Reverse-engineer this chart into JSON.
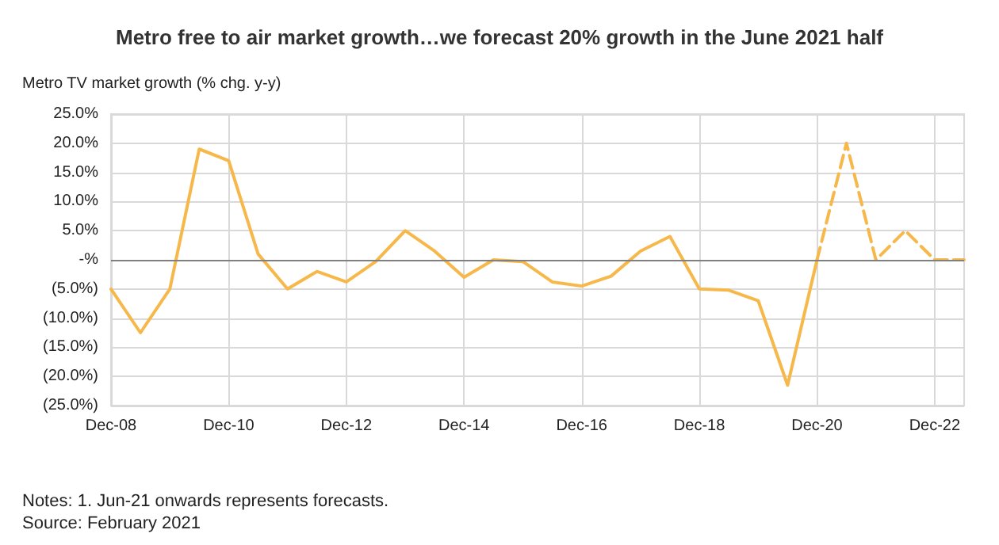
{
  "chart_data": {
    "type": "line",
    "title": "Metro free to air market growth…we forecast 20% growth in the June 2021 half",
    "ylabel": "Metro TV market growth (% chg. y-y)",
    "categories": [
      "Dec-08",
      null,
      null,
      null,
      "Dec-10",
      null,
      null,
      null,
      "Dec-12",
      null,
      null,
      null,
      "Dec-14",
      null,
      null,
      null,
      "Dec-16",
      null,
      null,
      null,
      "Dec-18",
      null,
      null,
      null,
      "Dec-20",
      null,
      null,
      null,
      "Dec-22",
      null
    ],
    "series": [
      {
        "color": "#f7b84b",
        "line_style": "solid",
        "values": [
          -5,
          -12.5,
          -5,
          19,
          17,
          1,
          -5,
          -2,
          -3.8,
          -0.3,
          5,
          1.5,
          -3,
          0,
          -0.3,
          -3.8,
          -4.5,
          -2.8,
          1.5,
          4,
          -5,
          -5.2,
          -7,
          -21.5,
          0,
          null,
          null,
          null,
          null,
          null
        ]
      },
      {
        "color": "#f7b84b",
        "line_style": "dashed",
        "values": [
          null,
          null,
          null,
          null,
          null,
          null,
          null,
          null,
          null,
          null,
          null,
          null,
          null,
          null,
          null,
          null,
          null,
          null,
          null,
          null,
          null,
          null,
          null,
          null,
          0,
          20,
          0,
          5,
          0,
          0
        ]
      }
    ],
    "ylim": [
      -25,
      25
    ],
    "yticks": [
      {
        "value": 25,
        "label": "25.0%"
      },
      {
        "value": 20,
        "label": "20.0%"
      },
      {
        "value": 15,
        "label": "15.0%"
      },
      {
        "value": 10,
        "label": "10.0%"
      },
      {
        "value": 5,
        "label": "5.0%"
      },
      {
        "value": 0,
        "label": "-%"
      },
      {
        "value": -5,
        "label": "(5.0%)"
      },
      {
        "value": -10,
        "label": "(10.0%)"
      },
      {
        "value": -15,
        "label": "(15.0%)"
      },
      {
        "value": -20,
        "label": "(20.0%)"
      },
      {
        "value": -25,
        "label": "(25.0%)"
      }
    ],
    "grid": true,
    "marker": "none",
    "ref_lines": [
      {
        "axis": "y",
        "value": 0,
        "color": "#808080"
      }
    ],
    "annotations": [
      "Notes: 1. Jun-21 onwards represents forecasts.",
      "Source: February 2021"
    ]
  }
}
